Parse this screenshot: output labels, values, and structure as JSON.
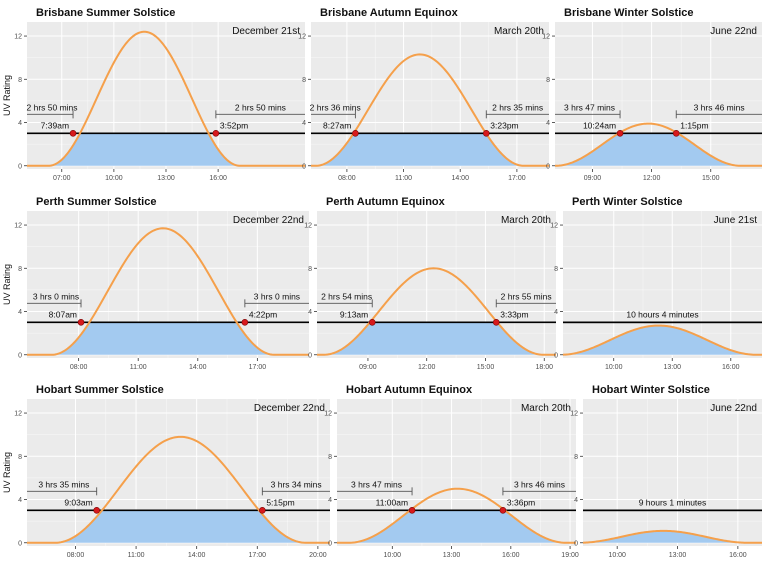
{
  "colors": {
    "curve": "#F5A04B",
    "area": "#A3CAF0",
    "threshold": "#000000",
    "point": "#D7191C",
    "panel": "#EBEBEB",
    "grid": "#FFFFFF"
  },
  "ylabel": "UV Rating",
  "chart_data": [
    {
      "type": "area",
      "title": "Brisbane Summer Solstice",
      "date": "December 21st",
      "xlim": [
        5.0,
        21.0
      ],
      "ylim": [
        -0.3,
        13.3
      ],
      "yticks": [
        0,
        4,
        8,
        12
      ],
      "ytick_labels": [
        "0",
        "4",
        "8",
        "12"
      ],
      "xticks": [
        7,
        10,
        13,
        16
      ],
      "xtick_labels": [
        "07:00",
        "10:00",
        "13:00",
        "16:00"
      ],
      "threshold": 3,
      "peak_time": 11.75,
      "peak_uv": 12.4,
      "curve_halfwidth": 5.5,
      "crossings": [
        {
          "x": 7.65,
          "label": "7:39am"
        },
        {
          "x": 15.87,
          "label": "3:52pm"
        }
      ],
      "durations": [
        {
          "label": "2 hrs 50 mins"
        },
        {
          "label": "2 hrs 50 mins"
        }
      ]
    },
    {
      "type": "area",
      "title": "Brisbane Autumn Equinox",
      "date": "March 20th",
      "xlim": [
        6.1,
        18.7
      ],
      "ylim": [
        -0.3,
        13.3
      ],
      "yticks": [
        0,
        4,
        8,
        12
      ],
      "ytick_labels": [
        "0",
        "4",
        "8",
        "12"
      ],
      "xticks": [
        8,
        11,
        14,
        17
      ],
      "xtick_labels": [
        "08:00",
        "11:00",
        "14:00",
        "17:00"
      ],
      "threshold": 3,
      "peak_time": 11.86,
      "peak_uv": 10.3,
      "curve_halfwidth": 5.5,
      "crossings": [
        {
          "x": 8.45,
          "label": "8:27am"
        },
        {
          "x": 15.38,
          "label": "3:23pm"
        }
      ],
      "durations": [
        {
          "label": "2 hrs 36 mins"
        },
        {
          "label": "2 hrs 35 mins"
        }
      ]
    },
    {
      "type": "area",
      "title": "Brisbane Winter Solstice",
      "date": "June 22nd",
      "xlim": [
        7.1,
        17.6
      ],
      "ylim": [
        -0.3,
        13.3
      ],
      "yticks": [
        0,
        4,
        8,
        12
      ],
      "ytick_labels": [
        "0",
        "4",
        "8",
        "12"
      ],
      "xticks": [
        9,
        12,
        15
      ],
      "xtick_labels": [
        "09:00",
        "12:00",
        "15:00"
      ],
      "threshold": 3,
      "peak_time": 11.83,
      "peak_uv": 3.9,
      "curve_halfwidth": 4.7,
      "crossings": [
        {
          "x": 10.4,
          "label": "10:24am"
        },
        {
          "x": 13.25,
          "label": "1:15pm"
        }
      ],
      "durations": [
        {
          "label": "3 hrs 47 mins"
        },
        {
          "label": "3 hrs 46 mins"
        }
      ]
    },
    {
      "type": "area",
      "title": "Perth Summer Solstice",
      "date": "December 22nd",
      "xlim": [
        5.4,
        19.6
      ],
      "ylim": [
        -0.3,
        13.3
      ],
      "yticks": [
        0,
        4,
        8,
        12
      ],
      "ytick_labels": [
        "0",
        "4",
        "8",
        "12"
      ],
      "xticks": [
        8,
        11,
        14,
        17
      ],
      "xtick_labels": [
        "08:00",
        "11:00",
        "14:00",
        "17:00"
      ],
      "threshold": 3,
      "peak_time": 12.25,
      "peak_uv": 11.7,
      "curve_halfwidth": 5.6,
      "crossings": [
        {
          "x": 8.12,
          "label": "8:07am"
        },
        {
          "x": 16.37,
          "label": "4:22pm"
        }
      ],
      "durations": [
        {
          "label": "3 hrs 0 mins"
        },
        {
          "label": "3 hrs 0 mins"
        }
      ]
    },
    {
      "type": "area",
      "title": "Perth Autumn Equinox",
      "date": "March 20th",
      "xlim": [
        6.4,
        18.6
      ],
      "ylim": [
        -0.3,
        13.3
      ],
      "yticks": [
        0,
        4,
        8,
        12
      ],
      "ytick_labels": [
        "0",
        "4",
        "8",
        "12"
      ],
      "xticks": [
        9,
        12,
        15,
        18
      ],
      "xtick_labels": [
        "09:00",
        "12:00",
        "15:00",
        "18:00"
      ],
      "threshold": 3,
      "peak_time": 12.35,
      "peak_uv": 8.0,
      "curve_halfwidth": 5.6,
      "crossings": [
        {
          "x": 9.22,
          "label": "9:13am"
        },
        {
          "x": 15.55,
          "label": "3:33pm"
        }
      ],
      "durations": [
        {
          "label": "2 hrs 54 mins"
        },
        {
          "label": "2 hrs 55 mins"
        }
      ]
    },
    {
      "type": "area",
      "title": "Perth Winter Solstice",
      "date": "June 21st",
      "xlim": [
        7.4,
        17.6
      ],
      "ylim": [
        -0.3,
        13.3
      ],
      "yticks": [
        0,
        4,
        8,
        12
      ],
      "ytick_labels": [
        "0",
        "4",
        "8",
        "12"
      ],
      "xticks": [
        10,
        13,
        16
      ],
      "xtick_labels": [
        "10:00",
        "13:00",
        "16:00"
      ],
      "threshold": 3,
      "peak_time": 12.3,
      "peak_uv": 2.7,
      "curve_halfwidth": 5.0,
      "crossings": [],
      "durations": [
        {
          "label": "10 hours 4 minutes"
        }
      ]
    },
    {
      "type": "area",
      "title": "Hobart Summer Solstice",
      "date": "December 22nd",
      "xlim": [
        5.6,
        20.6
      ],
      "ylim": [
        -0.3,
        13.3
      ],
      "yticks": [
        0,
        4,
        8,
        12
      ],
      "ytick_labels": [
        "0",
        "4",
        "8",
        "12"
      ],
      "xticks": [
        8,
        11,
        14,
        17,
        20
      ],
      "xtick_labels": [
        "08:00",
        "11:00",
        "14:00",
        "17:00",
        "20:00"
      ],
      "threshold": 3,
      "peak_time": 13.2,
      "peak_uv": 9.8,
      "curve_halfwidth": 6.2,
      "crossings": [
        {
          "x": 9.05,
          "label": "9:03am"
        },
        {
          "x": 17.25,
          "label": "5:15pm"
        }
      ],
      "durations": [
        {
          "label": "3 hrs 35 mins"
        },
        {
          "label": "3 hrs 34 mins"
        }
      ]
    },
    {
      "type": "area",
      "title": "Hobart Autumn Equinox",
      "date": "March 20th",
      "xlim": [
        7.2,
        19.3
      ],
      "ylim": [
        -0.3,
        13.3
      ],
      "yticks": [
        0,
        4,
        8,
        12
      ],
      "ytick_labels": [
        "0",
        "4",
        "8",
        "12"
      ],
      "xticks": [
        10,
        13,
        16,
        19
      ],
      "xtick_labels": [
        "10:00",
        "13:00",
        "16:00",
        "19:00"
      ],
      "threshold": 3,
      "peak_time": 13.3,
      "peak_uv": 5.0,
      "curve_halfwidth": 5.5,
      "crossings": [
        {
          "x": 11.0,
          "label": "11:00am"
        },
        {
          "x": 15.6,
          "label": "3:36pm"
        }
      ],
      "durations": [
        {
          "label": "3 hrs 47 mins"
        },
        {
          "label": "3 hrs 46 mins"
        }
      ]
    },
    {
      "type": "area",
      "title": "Hobart Winter Solstice",
      "date": "June 22nd",
      "xlim": [
        8.3,
        17.2
      ],
      "ylim": [
        -0.3,
        13.3
      ],
      "yticks": [
        0,
        4,
        8,
        12
      ],
      "ytick_labels": [
        "0",
        "4",
        "8",
        "12"
      ],
      "xticks": [
        10,
        13,
        16
      ],
      "xtick_labels": [
        "10:00",
        "13:00",
        "16:00"
      ],
      "threshold": 3,
      "peak_time": 12.3,
      "peak_uv": 1.1,
      "curve_halfwidth": 4.2,
      "crossings": [],
      "durations": [
        {
          "label": "9 hours 1 minutes"
        }
      ]
    }
  ]
}
